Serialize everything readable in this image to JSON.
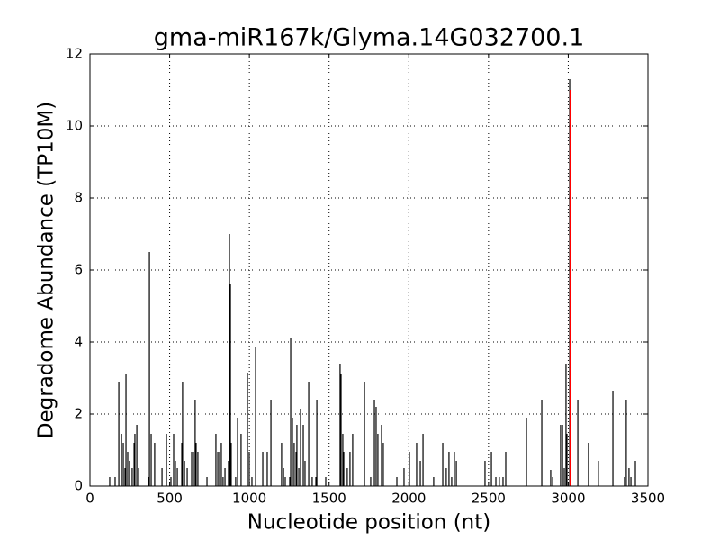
{
  "chart_data": {
    "type": "stem",
    "title": "gma-miR167k/Glyma.14G032700.1",
    "x_label": "Nucleotide position (nt)",
    "y_label": "Degradome Abundance (TP10M)",
    "xlim": [
      0,
      3500
    ],
    "ylim": [
      0,
      12
    ],
    "xticks": [
      0,
      500,
      1000,
      1500,
      2000,
      2500,
      3000,
      3500
    ],
    "yticks": [
      0,
      2,
      4,
      6,
      8,
      10,
      12
    ],
    "grid": true,
    "series": [
      {
        "color": "#000000",
        "x": [
          124,
          158,
          181,
          198,
          209,
          220,
          226,
          237,
          248,
          265,
          277,
          282,
          294,
          305,
          367,
          373,
          384,
          406,
          452,
          480,
          508,
          525,
          536,
          548,
          576,
          581,
          593,
          610,
          638,
          649,
          660,
          666,
          677,
          734,
          790,
          802,
          813,
          824,
          835,
          847,
          869,
          875,
          881,
          886,
          914,
          926,
          948,
          988,
          999,
          1016,
          1039,
          1084,
          1112,
          1135,
          1202,
          1214,
          1225,
          1253,
          1259,
          1270,
          1281,
          1293,
          1298,
          1310,
          1321,
          1338,
          1349,
          1372,
          1394,
          1417,
          1423,
          1479,
          1569,
          1575,
          1586,
          1592,
          1614,
          1631,
          1648,
          1722,
          1761,
          1784,
          1795,
          1806,
          1829,
          1840,
          1925,
          1970,
          2004,
          2049,
          2072,
          2089,
          2156,
          2213,
          2235,
          2252,
          2269,
          2286,
          2298,
          2478,
          2518,
          2546,
          2568,
          2591,
          2608,
          2738,
          2834,
          2890,
          2902,
          2952,
          2964,
          2975,
          2986,
          2992,
          3009,
          3060,
          3127,
          3189,
          3280,
          3353,
          3364,
          3381,
          3393,
          3421
        ],
        "values": [
          0.25,
          0.25,
          2.9,
          1.45,
          1.2,
          0.5,
          3.1,
          0.95,
          0.7,
          0.5,
          1.2,
          1.45,
          1.7,
          0.5,
          0.25,
          6.5,
          1.45,
          1.2,
          0.5,
          1.45,
          0.25,
          1.45,
          0.7,
          0.5,
          1.2,
          2.9,
          0.7,
          0.5,
          0.95,
          0.95,
          2.4,
          1.2,
          0.95,
          0.25,
          1.45,
          0.95,
          0.95,
          1.2,
          0.25,
          0.5,
          0.7,
          7.0,
          5.6,
          1.2,
          0.25,
          1.9,
          1.45,
          3.15,
          0.95,
          0.25,
          3.85,
          0.95,
          0.95,
          2.4,
          1.2,
          0.5,
          0.25,
          0.25,
          4.1,
          1.9,
          1.2,
          0.95,
          1.7,
          0.5,
          2.15,
          1.7,
          0.7,
          2.9,
          0.25,
          0.25,
          2.4,
          0.25,
          3.4,
          3.1,
          1.45,
          0.95,
          0.5,
          0.95,
          1.45,
          2.9,
          0.25,
          2.4,
          2.2,
          1.45,
          1.7,
          1.2,
          0.25,
          0.5,
          0.95,
          1.2,
          0.7,
          1.45,
          0.25,
          1.2,
          0.5,
          0.95,
          0.25,
          0.95,
          0.7,
          0.7,
          0.95,
          0.25,
          0.25,
          0.25,
          0.95,
          1.9,
          2.4,
          0.45,
          0.25,
          1.7,
          1.7,
          0.5,
          3.4,
          1.45,
          11.3,
          2.4,
          1.2,
          0.7,
          2.65,
          0.25,
          2.4,
          0.5,
          0.25,
          0.7
        ]
      },
      {
        "color": "#ff0000",
        "x": [
          3014
        ],
        "values": [
          11.0
        ]
      }
    ]
  }
}
